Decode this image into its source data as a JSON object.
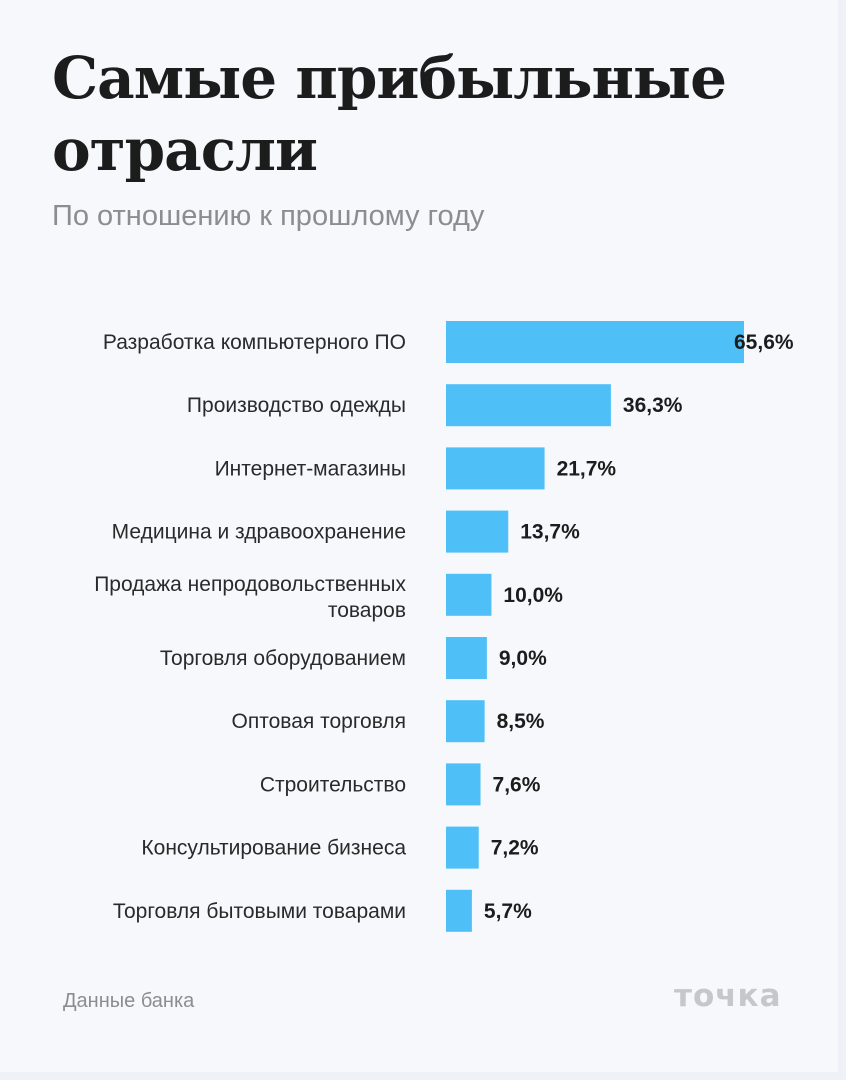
{
  "header": {
    "title": "Самые прибыльные отрасли",
    "subtitle": "По отношению к прошлому году"
  },
  "footer": {
    "source": "Данные банка",
    "logo": "точка"
  },
  "chart_data": {
    "type": "bar",
    "orientation": "horizontal",
    "bar_color": "#4ec0f7",
    "categories": [
      "Разработка компьютерного ПО",
      "Производство одежды",
      "Интернет-магазины",
      "Медицина и здравоохранение",
      "Продажа непродовольственных товаров",
      "Торговля оборудованием",
      "Оптовая торговля",
      "Строительство",
      "Консультирование бизнеса",
      "Торговля бытовыми товарами"
    ],
    "values": [
      65.6,
      36.3,
      21.7,
      13.7,
      10.0,
      9.0,
      8.5,
      7.6,
      7.2,
      5.7
    ],
    "value_labels": [
      "65,6%",
      "36,3%",
      "21,7%",
      "13,7%",
      "10,0%",
      "9,0%",
      "8,5%",
      "7,6%",
      "7,2%",
      "5,7%"
    ],
    "grid": false,
    "legend": "none"
  }
}
